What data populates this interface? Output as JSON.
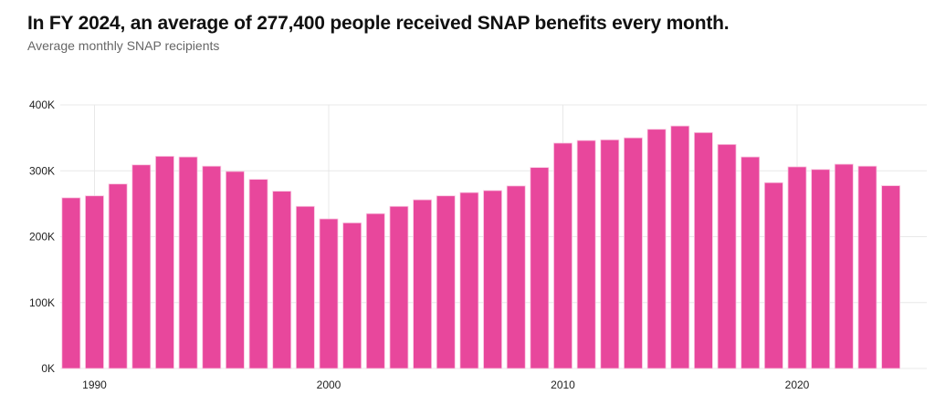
{
  "chart_data": {
    "type": "bar",
    "title": "In FY 2024, an average of 277,400 people received SNAP benefits every month.",
    "subtitle": "Average monthly SNAP recipients",
    "xlabel": "",
    "ylabel": "",
    "categories": [
      1989,
      1990,
      1991,
      1992,
      1993,
      1994,
      1995,
      1996,
      1997,
      1998,
      1999,
      2000,
      2001,
      2002,
      2003,
      2004,
      2005,
      2006,
      2007,
      2008,
      2009,
      2010,
      2011,
      2012,
      2013,
      2014,
      2015,
      2016,
      2017,
      2018,
      2019,
      2020,
      2021,
      2022,
      2023,
      2024
    ],
    "values": [
      259000,
      262000,
      280000,
      309000,
      322000,
      321000,
      307000,
      299000,
      287000,
      269000,
      246000,
      227000,
      221000,
      235000,
      246000,
      256000,
      262000,
      267000,
      270000,
      277000,
      305000,
      342000,
      346000,
      347000,
      350000,
      363000,
      368000,
      358000,
      340000,
      321000,
      282000,
      306000,
      302000,
      310000,
      307000,
      277400
    ],
    "ylim": [
      0,
      400000
    ],
    "y_ticks": [
      "0K",
      "100K",
      "200K",
      "300K",
      "400K"
    ],
    "x_ticks": [
      "1990",
      "2000",
      "2010",
      "2020"
    ],
    "grid": true,
    "bar_color": "#e8479c"
  }
}
